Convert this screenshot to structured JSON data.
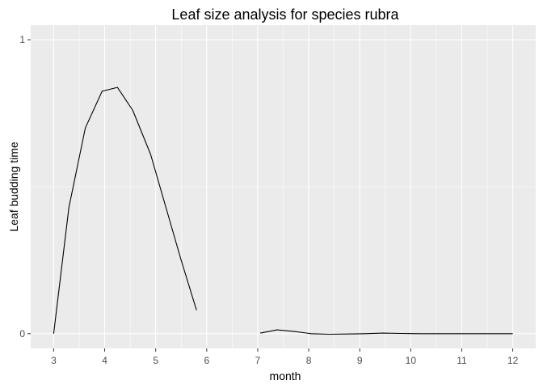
{
  "chart_data": {
    "type": "line",
    "title": "Leaf size analysis for species rubra",
    "xlabel": "month",
    "ylabel": "Leaf budding time",
    "xlim": [
      2.55,
      12.45
    ],
    "ylim": [
      -0.05,
      1.05
    ],
    "x_ticks": [
      3,
      4,
      5,
      6,
      7,
      8,
      9,
      10,
      11,
      12
    ],
    "y_ticks": [
      0,
      1
    ],
    "grid": true,
    "legend": "none",
    "colors": {
      "panel": "#ebebeb",
      "grid": "#ffffff",
      "line": "#000000",
      "tick_text": "#4d4d4d"
    },
    "series": [
      {
        "segments": [
          [
            [
              3.0,
              0.0
            ],
            [
              3.3,
              0.43
            ],
            [
              3.62,
              0.7
            ],
            [
              3.95,
              0.825
            ],
            [
              4.25,
              0.838
            ],
            [
              4.55,
              0.76
            ],
            [
              4.9,
              0.61
            ],
            [
              5.2,
              0.43
            ],
            [
              5.5,
              0.25
            ],
            [
              5.8,
              0.08
            ]
          ],
          [
            [
              7.05,
              0.002
            ],
            [
              7.38,
              0.013
            ],
            [
              7.7,
              0.008
            ],
            [
              8.05,
              0.0
            ],
            [
              8.4,
              -0.002
            ],
            [
              8.75,
              -0.001
            ],
            [
              9.1,
              0.0
            ],
            [
              9.45,
              0.002
            ],
            [
              9.8,
              0.001
            ],
            [
              10.2,
              0.0
            ],
            [
              10.6,
              0.0
            ],
            [
              11.0,
              0.0
            ],
            [
              11.5,
              0.0
            ],
            [
              12.0,
              0.0
            ]
          ]
        ]
      }
    ]
  }
}
